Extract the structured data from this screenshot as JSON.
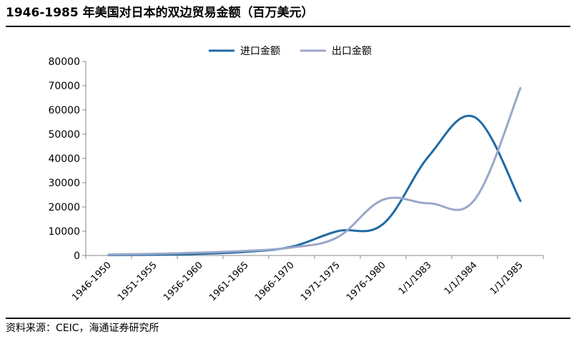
{
  "title": "1946-1985 年美国对日本的双边贸易金额（百万美元）",
  "source": "资料来源：CEIC，海通证券研究所",
  "chart_data": {
    "type": "line",
    "title": "1946-1985 年美国对日本的双边贸易金额（百万美元）",
    "xlabel": "",
    "ylabel": "",
    "categories": [
      "1946-1950",
      "1951-1955",
      "1956-1960",
      "1961-1965",
      "1966-1970",
      "1971-1975",
      "1976-1980",
      "1/1/1983",
      "1/1/1984",
      "1/1/1985"
    ],
    "ylim": [
      0,
      80000
    ],
    "yticks": [
      "0",
      "10000",
      "20000",
      "30000",
      "40000",
      "50000",
      "60000",
      "70000",
      "80000"
    ],
    "legend_position": "top-center",
    "grid": false,
    "smooth": true,
    "series": [
      {
        "name": "进口金额",
        "color": "#1f6aa5",
        "values": [
          200,
          300,
          700,
          1500,
          3600,
          10000,
          13000,
          41000,
          57000,
          22500
        ]
      },
      {
        "name": "出口金额",
        "color": "#9aa7c9",
        "values": [
          400,
          700,
          1200,
          1900,
          3300,
          7500,
          23000,
          21500,
          23000,
          69000
        ]
      }
    ]
  }
}
